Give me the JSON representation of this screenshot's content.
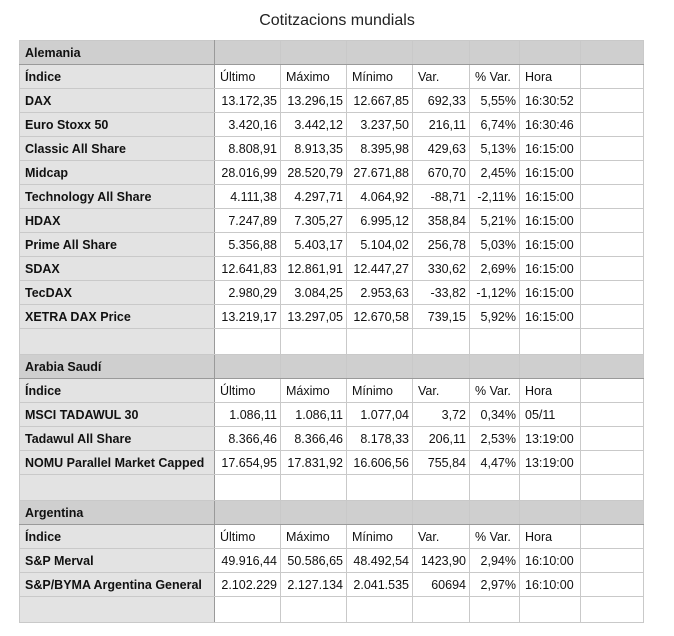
{
  "title": "Cotitzacions mundials",
  "sections": [
    {
      "name": "Alemania",
      "headers": [
        "Índice",
        "Último",
        "Máximo",
        "Mínimo",
        "Var.",
        "% Var.",
        "Hora"
      ],
      "rows": [
        [
          "DAX",
          "13.172,35",
          "13.296,15",
          "12.667,85",
          "692,33",
          "5,55%",
          "16:30:52"
        ],
        [
          "Euro Stoxx 50",
          "3.420,16",
          "3.442,12",
          "3.237,50",
          "216,11",
          "6,74%",
          "16:30:46"
        ],
        [
          "Classic All Share",
          "8.808,91",
          "8.913,35",
          "8.395,98",
          "429,63",
          "5,13%",
          "16:15:00"
        ],
        [
          "Midcap",
          "28.016,99",
          "28.520,79",
          "27.671,88",
          "670,70",
          "2,45%",
          "16:15:00"
        ],
        [
          "Technology All Share",
          "4.111,38",
          "4.297,71",
          "4.064,92",
          "-88,71",
          "-2,11%",
          "16:15:00"
        ],
        [
          "HDAX",
          "7.247,89",
          "7.305,27",
          "6.995,12",
          "358,84",
          "5,21%",
          "16:15:00"
        ],
        [
          "Prime All Share",
          "5.356,88",
          "5.403,17",
          "5.104,02",
          "256,78",
          "5,03%",
          "16:15:00"
        ],
        [
          "SDAX",
          "12.641,83",
          "12.861,91",
          "12.447,27",
          "330,62",
          "2,69%",
          "16:15:00"
        ],
        [
          "TecDAX",
          "2.980,29",
          "3.084,25",
          "2.953,63",
          "-33,82",
          "-1,12%",
          "16:15:00"
        ],
        [
          "XETRA DAX Price",
          "13.219,17",
          "13.297,05",
          "12.670,58",
          "739,15",
          "5,92%",
          "16:15:00"
        ]
      ]
    },
    {
      "name": "Arabia Saudí",
      "headers": [
        "Índice",
        "Último",
        "Máximo",
        "Mínimo",
        "Var.",
        "% Var.",
        "Hora"
      ],
      "rows": [
        [
          "MSCI TADAWUL 30",
          "1.086,11",
          "1.086,11",
          "1.077,04",
          "3,72",
          "0,34%",
          "05/11"
        ],
        [
          "Tadawul All Share",
          "8.366,46",
          "8.366,46",
          "8.178,33",
          "206,11",
          "2,53%",
          "13:19:00"
        ],
        [
          "NOMU Parallel Market Capped",
          "17.654,95",
          "17.831,92",
          "16.606,56",
          "755,84",
          "4,47%",
          "13:19:00"
        ]
      ]
    },
    {
      "name": "Argentina",
      "headers": [
        "Índice",
        "Último",
        "Máximo",
        "Mínimo",
        "Var.",
        "% Var.",
        "Hora"
      ],
      "rows": [
        [
          "S&P Merval",
          "49.916,44",
          "50.586,65",
          "48.492,54",
          "1423,90",
          "2,94%",
          "16:10:00"
        ],
        [
          "S&P/BYMA Argentina General",
          "2.102.229",
          "2.127.134",
          "2.041.535",
          "60694",
          "2,97%",
          "16:10:00"
        ]
      ]
    }
  ]
}
